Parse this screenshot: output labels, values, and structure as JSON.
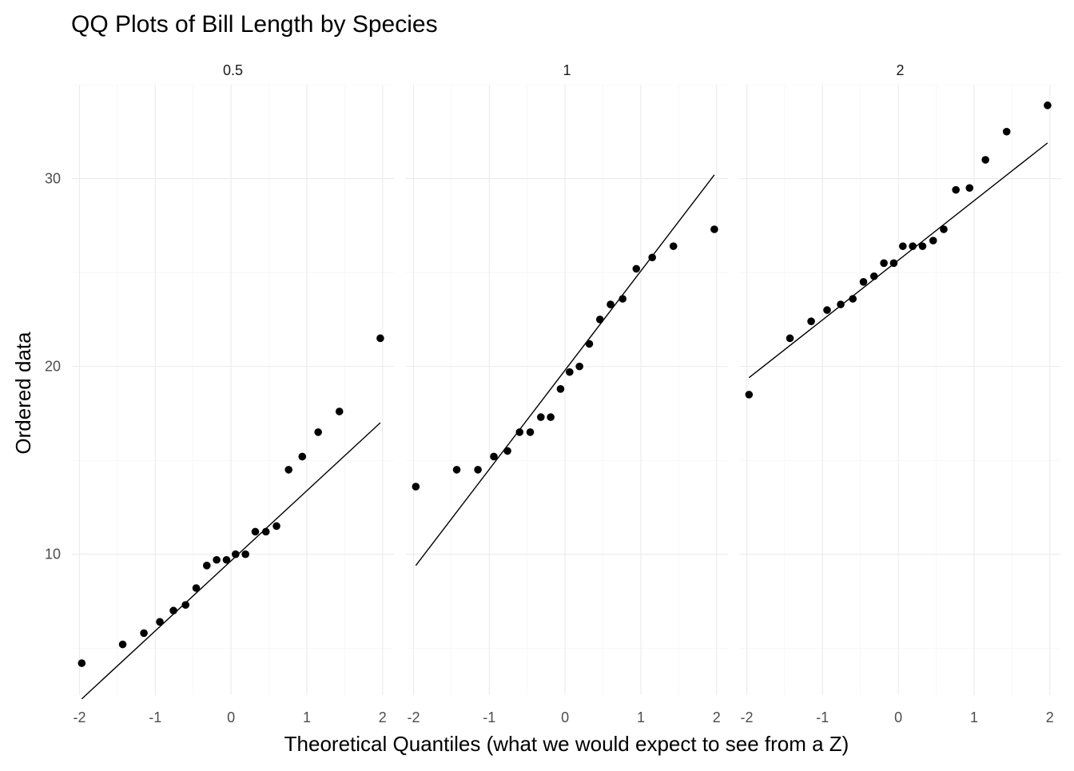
{
  "chart_data": {
    "type": "scatter",
    "title": "QQ Plots of Bill Length by Species",
    "xlabel": "Theoretical Quantiles (what we would expect to see from a Z)",
    "ylabel": "Ordered data",
    "xlim": [
      -2.1,
      2.15
    ],
    "ylim": [
      2.5,
      35
    ],
    "x_ticks": [
      -2,
      -1,
      0,
      1,
      2
    ],
    "x_tick_labels": [
      "-2",
      "-1",
      "0",
      "1",
      "2"
    ],
    "y_ticks": [
      10,
      20,
      30
    ],
    "y_tick_labels": [
      "10",
      "20",
      "30"
    ],
    "grid": true,
    "legend": "none",
    "panels": [
      {
        "label": "0.5",
        "x": [
          -1.97,
          -1.43,
          -1.15,
          -0.94,
          -0.76,
          -0.6,
          -0.46,
          -0.32,
          -0.19,
          -0.06,
          0.06,
          0.19,
          0.32,
          0.46,
          0.6,
          0.76,
          0.94,
          1.15,
          1.43,
          1.97
        ],
        "y": [
          4.2,
          5.2,
          5.8,
          6.4,
          7.0,
          7.3,
          8.2,
          9.4,
          9.7,
          9.7,
          10.0,
          10.0,
          11.2,
          11.2,
          11.5,
          14.5,
          15.2,
          16.5,
          17.6,
          21.5
        ],
        "line": [
          [
            -1.97,
            2.3
          ],
          [
            1.97,
            17.0
          ]
        ]
      },
      {
        "label": "1",
        "x": [
          -1.97,
          -1.43,
          -1.15,
          -0.94,
          -0.76,
          -0.6,
          -0.46,
          -0.32,
          -0.19,
          -0.06,
          0.06,
          0.19,
          0.32,
          0.46,
          0.6,
          0.76,
          0.94,
          1.15,
          1.43,
          1.97
        ],
        "y": [
          13.6,
          14.5,
          14.5,
          15.2,
          15.5,
          16.5,
          16.5,
          17.3,
          17.3,
          18.8,
          19.7,
          20.0,
          21.2,
          22.5,
          23.3,
          23.6,
          25.2,
          25.8,
          26.4,
          27.3
        ],
        "line": [
          [
            -1.97,
            9.4
          ],
          [
            1.97,
            30.2
          ]
        ]
      },
      {
        "label": "2",
        "x": [
          -1.97,
          -1.43,
          -1.15,
          -0.94,
          -0.76,
          -0.6,
          -0.46,
          -0.32,
          -0.19,
          -0.06,
          0.06,
          0.19,
          0.32,
          0.46,
          0.6,
          0.76,
          0.94,
          1.15,
          1.43,
          1.97
        ],
        "y": [
          18.5,
          21.5,
          22.4,
          23.0,
          23.3,
          23.6,
          24.5,
          24.8,
          25.5,
          25.5,
          26.4,
          26.4,
          26.4,
          26.7,
          27.3,
          29.4,
          29.5,
          31.0,
          32.5,
          33.9
        ],
        "line": [
          [
            -1.97,
            19.4
          ],
          [
            1.97,
            31.9
          ]
        ]
      }
    ]
  }
}
